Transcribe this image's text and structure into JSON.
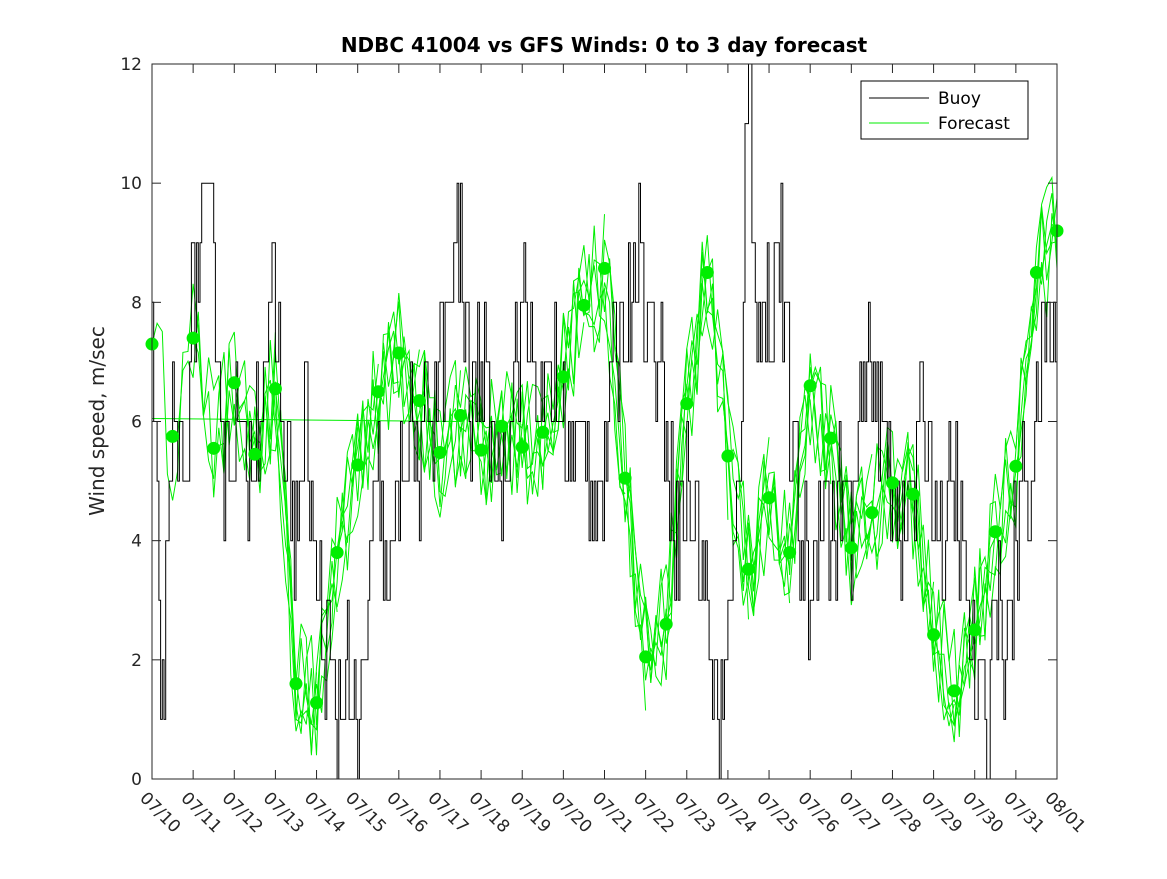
{
  "chart_data": {
    "type": "line",
    "title": "NDBC 41004 vs GFS Winds: 0 to 3 day forecast",
    "xlabel": "",
    "ylabel": "Wind speed, m/sec",
    "ylim": [
      0,
      12
    ],
    "yticks": [
      0,
      2,
      4,
      6,
      8,
      10,
      12
    ],
    "xlim": [
      "2021-07-10",
      "2021-08-01"
    ],
    "xtick_labels": [
      "07/10",
      "07/11",
      "07/12",
      "07/13",
      "07/14",
      "07/15",
      "07/16",
      "07/17",
      "07/18",
      "07/19",
      "07/20",
      "07/21",
      "07/22",
      "07/23",
      "07/24",
      "07/25",
      "07/26",
      "07/27",
      "07/28",
      "07/29",
      "07/30",
      "07/31",
      "08/01"
    ],
    "grid": false,
    "legend": {
      "position": "top-right",
      "entries": [
        "Buoy",
        "Forecast"
      ]
    },
    "colors": {
      "buoy": "#000000",
      "forecast": "#00ee00"
    },
    "series": [
      {
        "name": "Buoy",
        "x_hours": [
          0,
          6,
          12,
          18,
          24,
          30,
          36,
          42,
          48,
          54,
          60,
          66,
          72,
          78,
          84,
          90,
          96,
          102,
          108,
          114,
          120,
          126,
          132,
          138,
          144,
          150,
          156,
          162,
          168,
          174,
          180,
          186,
          192,
          198,
          204,
          210,
          216,
          222,
          228,
          234,
          240,
          246,
          252,
          258,
          264,
          270,
          276,
          282,
          288,
          294,
          300,
          306,
          312,
          318,
          324,
          330,
          336,
          342,
          348,
          354,
          360,
          366,
          372,
          378,
          384,
          390,
          396,
          402,
          408,
          414,
          420,
          426,
          432,
          438,
          444,
          450,
          456,
          462,
          468,
          474,
          480,
          486,
          492,
          498,
          504,
          510,
          516,
          522,
          528
        ],
        "values": [
          7,
          1,
          6,
          5,
          8,
          9,
          9,
          5,
          6,
          5,
          6,
          7,
          8,
          5,
          4,
          6,
          3,
          2,
          1,
          2,
          0,
          3,
          5,
          3,
          5,
          6,
          5,
          6,
          7,
          8,
          9,
          6,
          7,
          6,
          5,
          7,
          8,
          7,
          6,
          7,
          6,
          5,
          6,
          5,
          5,
          7,
          8,
          9,
          8,
          7,
          6,
          4,
          5,
          4,
          3,
          1,
          2,
          5,
          12,
          7,
          8,
          9,
          6,
          4,
          3,
          5,
          4,
          5,
          4,
          6,
          7,
          6,
          5,
          4,
          5,
          6,
          5,
          4,
          5,
          3,
          2,
          1,
          3,
          2,
          4,
          5,
          6,
          8,
          7
        ]
      },
      {
        "name": "Forecast",
        "init_hours": [
          0,
          12,
          24,
          36,
          48,
          60,
          72,
          84,
          96,
          108,
          120,
          132,
          144,
          156,
          168,
          180,
          192,
          204,
          216,
          228,
          240,
          252,
          264,
          276,
          288,
          300,
          312,
          324,
          336,
          348,
          360,
          372,
          384,
          396,
          408,
          420,
          432,
          444,
          456,
          468,
          480,
          492,
          504,
          516,
          528
        ],
        "markers": [
          7.3,
          5.75,
          7.4,
          5.55,
          6.65,
          5.45,
          6.55,
          1.6,
          1.28,
          3.8,
          5.27,
          6.5,
          7.15,
          6.35,
          5.48,
          6.1,
          5.52,
          5.92,
          5.57,
          5.82,
          6.75,
          7.95,
          8.57,
          5.05,
          2.05,
          2.6,
          6.3,
          8.5,
          5.42,
          3.52,
          4.72,
          3.8,
          6.6,
          5.72,
          3.88,
          4.47,
          4.97,
          4.78,
          2.42,
          1.48,
          2.5,
          4.15,
          5.25,
          8.5,
          9.2
        ]
      }
    ]
  }
}
